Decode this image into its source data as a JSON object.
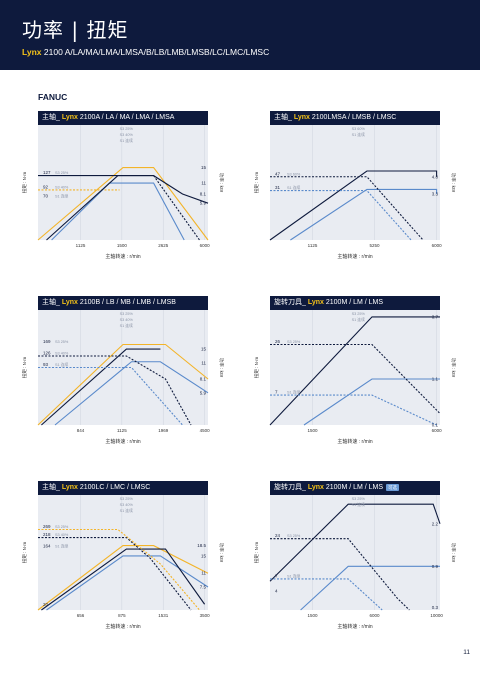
{
  "header": {
    "title": "功率 | 扭矩",
    "model_bold": "Lynx",
    "model_rest": " 2100 A/LA/MA/LMA/LMSA/B/LB/LMB/LMSB/LC/LMC/LMSC"
  },
  "section": "FANUC",
  "page_number": "11",
  "chart_data": [
    {
      "id": "c1",
      "type": "line",
      "prefix": "主轴_ ",
      "brand": "Lynx",
      "model": " 2100A / LA / MA / LMA / LMSA",
      "badge": "",
      "xlabel": "主轴转速 : r/min",
      "ylabel_left": "扭矩 : N·m",
      "ylabel_right": "功率 : kW",
      "xticks": [
        "1125",
        "1500",
        "2625",
        "6000"
      ],
      "left_values": [
        {
          "value": "127",
          "label": "S3 25%",
          "frac": 0.44
        },
        {
          "value": "92",
          "label": "S3 40%",
          "frac": 0.565
        },
        {
          "value": "70",
          "label": "S1 连续",
          "frac": 0.645
        }
      ],
      "right_values": [
        {
          "value": "15",
          "frac": 0.37
        },
        {
          "value": "11",
          "frac": 0.505
        },
        {
          "value": "8.1",
          "frac": 0.6
        },
        {
          "value": "5.9",
          "frac": 0.68
        }
      ],
      "top_labels": [
        "S3 25%",
        "S3 40%",
        "S1 连续"
      ],
      "series": [
        {
          "label": "S3 25%",
          "color": "#f3b429",
          "style": "solid",
          "points": [
            [
              0,
              1
            ],
            [
              0.5,
              0.37
            ],
            [
              0.68,
              0.37
            ],
            [
              1,
              1
            ]
          ]
        },
        {
          "label": "S3 40%",
          "color": "#f3b429",
          "style": "dashed",
          "points": [
            [
              0,
              0.565
            ],
            [
              0.48,
              0.565
            ]
          ]
        },
        {
          "label": "S1 连续",
          "color": "#5a8acb",
          "style": "solid",
          "points": [
            [
              0.08,
              1
            ],
            [
              0.42,
              0.505
            ],
            [
              0.68,
              0.505
            ],
            [
              0.86,
              1
            ]
          ]
        },
        {
          "label": "torque",
          "color": "#0e1a3d",
          "style": "solid",
          "points": [
            [
              0,
              0.44
            ],
            [
              0.48,
              0.44
            ],
            [
              0.68,
              0.44
            ],
            [
              0.68,
              0.44
            ]
          ]
        },
        {
          "label": "power",
          "color": "#0e1a3d",
          "style": "solid",
          "points": [
            [
              0.05,
              1
            ],
            [
              0.47,
              0.44
            ],
            [
              0.68,
              0.44
            ],
            [
              0.85,
              0.6
            ],
            [
              1,
              0.68
            ]
          ]
        },
        {
          "label": "S1 tail",
          "color": "#0e1a3d",
          "style": "dashed",
          "points": [
            [
              0.68,
              0.44
            ],
            [
              0.95,
              1
            ]
          ]
        }
      ]
    },
    {
      "id": "c2",
      "type": "line",
      "prefix": "主轴_ ",
      "brand": "Lynx",
      "model": " 2100LMSA / LMSB / LMSC",
      "badge": "",
      "xlabel": "主轴转速 : r/min",
      "ylabel_left": "扭矩 : N·m",
      "ylabel_right": "功率 : kW",
      "xticks": [
        "1125",
        "5250",
        "6000"
      ],
      "left_values": [
        {
          "value": "47",
          "label": "S3 60%",
          "frac": 0.45
        },
        {
          "value": "31",
          "label": "S1 连续",
          "frac": 0.57
        }
      ],
      "right_values": [
        {
          "value": "4.8",
          "frac": 0.45
        },
        {
          "value": "3.3",
          "frac": 0.6
        }
      ],
      "top_labels": [
        "S3 60%",
        "S1 连续"
      ],
      "series": [
        {
          "label": "S3 60%",
          "color": "#0e1a3d",
          "style": "solid",
          "points": [
            [
              0,
              1
            ],
            [
              0.57,
              0.4
            ],
            [
              0.98,
              0.4
            ],
            [
              0.98,
              0.45
            ]
          ]
        },
        {
          "label": "S1 连续",
          "color": "#5a8acb",
          "style": "solid",
          "points": [
            [
              0.12,
              1
            ],
            [
              0.57,
              0.56
            ],
            [
              0.98,
              0.56
            ],
            [
              0.98,
              0.6
            ]
          ]
        },
        {
          "label": "S3 60% torque",
          "color": "#0e1a3d",
          "style": "dashed",
          "points": [
            [
              0,
              0.45
            ],
            [
              0.57,
              0.45
            ],
            [
              0.9,
              1
            ]
          ]
        },
        {
          "label": "S1 torque",
          "color": "#5a8acb",
          "style": "dashed",
          "points": [
            [
              0,
              0.57
            ],
            [
              0.57,
              0.57
            ],
            [
              0.83,
              1
            ]
          ]
        }
      ]
    },
    {
      "id": "c3",
      "type": "line",
      "prefix": "主轴_ ",
      "brand": "Lynx",
      "model": " 2100B / LB / MB / LMB / LMSB",
      "badge": "",
      "xlabel": "主轴转速 : r/min",
      "ylabel_left": "扭矩 : N·m",
      "ylabel_right": "功率 : kW",
      "xticks": [
        "844",
        "1125",
        "1969",
        "4500"
      ],
      "left_values": [
        {
          "value": "169",
          "label": "S3 25%",
          "frac": 0.3
        },
        {
          "value": "126",
          "label": "S3 40%",
          "frac": 0.4
        },
        {
          "value": "93",
          "label": "S1 连续",
          "frac": 0.5
        }
      ],
      "right_values": [
        {
          "value": "15",
          "frac": 0.34
        },
        {
          "value": "11",
          "frac": 0.46
        },
        {
          "value": "8.1",
          "frac": 0.6
        },
        {
          "value": "5.9",
          "frac": 0.72
        }
      ],
      "top_labels": [
        "S3 25%",
        "S3 40%",
        "S1 连续"
      ],
      "series": [
        {
          "label": "S3 25%",
          "color": "#f3b429",
          "style": "solid",
          "points": [
            [
              0,
              1
            ],
            [
              0.5,
              0.3
            ],
            [
              0.75,
              0.3
            ],
            [
              1,
              0.6
            ]
          ]
        },
        {
          "label": "S1 连续",
          "color": "#5a8acb",
          "style": "solid",
          "points": [
            [
              0.1,
              1
            ],
            [
              0.55,
              0.45
            ],
            [
              0.72,
              0.45
            ],
            [
              1,
              0.72
            ]
          ]
        },
        {
          "label": "power",
          "color": "#0e1a3d",
          "style": "solid",
          "points": [
            [
              0.02,
              1
            ],
            [
              0.52,
              0.34
            ],
            [
              0.72,
              0.34
            ],
            [
              0.72,
              0.34
            ]
          ]
        },
        {
          "label": "S3 40%",
          "color": "#0e1a3d",
          "style": "dashed",
          "points": [
            [
              0,
              0.4
            ],
            [
              0.52,
              0.4
            ],
            [
              0.75,
              0.6
            ],
            [
              0.9,
              1
            ]
          ]
        },
        {
          "label": "S1 torque",
          "color": "#5a8acb",
          "style": "dashed",
          "points": [
            [
              0,
              0.5
            ],
            [
              0.55,
              0.5
            ],
            [
              0.85,
              1
            ]
          ]
        }
      ]
    },
    {
      "id": "c4",
      "type": "line",
      "prefix": "旋转刀具_ ",
      "brand": "Lynx",
      "model": " 2100M / LM / LMS",
      "badge": "",
      "xlabel": "主轴转速 : r/min",
      "ylabel_left": "扭矩 : N·m",
      "ylabel_right": "功率 : kW",
      "xticks": [
        "1500",
        "6000"
      ],
      "left_values": [
        {
          "value": "26",
          "label": "S3 25%",
          "frac": 0.3
        },
        {
          "value": "7",
          "label": "S1 连续",
          "frac": 0.74
        }
      ],
      "right_values": [
        {
          "value": "3.7",
          "frac": 0.06
        },
        {
          "value": "1.1",
          "frac": 0.6
        },
        {
          "value": "0.1",
          "frac": 1.0
        }
      ],
      "top_labels": [
        "S3 25%",
        "S1 连续"
      ],
      "series": [
        {
          "label": "S3 25%",
          "color": "#0e1a3d",
          "style": "solid",
          "points": [
            [
              0,
              1
            ],
            [
              0.6,
              0.06
            ],
            [
              1,
              0.06
            ]
          ]
        },
        {
          "label": "S1 连续",
          "color": "#5a8acb",
          "style": "solid",
          "points": [
            [
              0.2,
              1
            ],
            [
              0.6,
              0.6
            ],
            [
              1,
              0.6
            ]
          ]
        },
        {
          "label": "S3 torque",
          "color": "#0e1a3d",
          "style": "dashed",
          "points": [
            [
              0,
              0.3
            ],
            [
              0.6,
              0.3
            ],
            [
              1,
              0.9
            ]
          ]
        },
        {
          "label": "S1 torque",
          "color": "#5a8acb",
          "style": "dashed",
          "points": [
            [
              0,
              0.74
            ],
            [
              0.6,
              0.74
            ],
            [
              0.98,
              1
            ]
          ]
        }
      ]
    },
    {
      "id": "c5",
      "type": "line",
      "prefix": "主轴_ ",
      "brand": "Lynx",
      "model": " 2100LC / LMC / LMSC",
      "badge": "",
      "xlabel": "主轴转速 : r/min",
      "ylabel_left": "扭矩 : N·m",
      "ylabel_right": "功率 : kW",
      "xticks": [
        "656",
        "875",
        "1531",
        "3500"
      ],
      "left_values": [
        {
          "value": "269",
          "label": "S3 25%",
          "frac": 0.3
        },
        {
          "value": "218",
          "label": "S3 40%",
          "frac": 0.37
        },
        {
          "value": "164",
          "label": "S1 连续",
          "frac": 0.47
        },
        {
          "value": "20",
          "label": "",
          "frac": 0.98
        }
      ],
      "right_values": [
        {
          "value": "18.5",
          "frac": 0.44
        },
        {
          "value": "15",
          "frac": 0.53
        },
        {
          "value": "11",
          "frac": 0.68
        },
        {
          "value": "7.5",
          "frac": 0.8
        }
      ],
      "top_labels": [
        "S3 25%",
        "S3 40%",
        "S1 连续"
      ],
      "series": [
        {
          "label": "S3 25%",
          "color": "#f3b429",
          "style": "solid",
          "points": [
            [
              0,
              1
            ],
            [
              0.5,
              0.44
            ],
            [
              0.68,
              0.44
            ],
            [
              1,
              0.68
            ]
          ]
        },
        {
          "label": "S1 连续",
          "color": "#5a8acb",
          "style": "solid",
          "points": [
            [
              0.05,
              1
            ],
            [
              0.5,
              0.53
            ],
            [
              0.72,
              0.53
            ],
            [
              1,
              0.8
            ]
          ]
        },
        {
          "label": "power",
          "color": "#0e1a3d",
          "style": "solid",
          "points": [
            [
              0.02,
              1
            ],
            [
              0.52,
              0.47
            ],
            [
              0.75,
              0.47
            ],
            [
              0.98,
              0.95
            ]
          ]
        },
        {
          "label": "S3 40%",
          "color": "#0e1a3d",
          "style": "dashed",
          "points": [
            [
              0,
              0.37
            ],
            [
              0.52,
              0.37
            ],
            [
              0.66,
              0.55
            ],
            [
              0.9,
              1
            ]
          ]
        },
        {
          "label": "S3 25% torque",
          "color": "#f3b429",
          "style": "dashed",
          "points": [
            [
              0,
              0.3
            ],
            [
              0.47,
              0.3
            ],
            [
              0.72,
              0.6
            ],
            [
              0.95,
              1
            ]
          ]
        }
      ]
    },
    {
      "id": "c6",
      "type": "line",
      "prefix": "旋转刀具_ ",
      "brand": "Lynx",
      "model": " 2100M / LM / LMS",
      "badge": "可选",
      "xlabel": "主轴转速 : r/min",
      "ylabel_left": "扭矩 : N·m",
      "ylabel_right": "功率 : kW",
      "xticks": [
        "1500",
        "6000",
        "10000"
      ],
      "left_values": [
        {
          "value": "24",
          "label": "S3 25%",
          "frac": 0.38
        },
        {
          "value": "7",
          "label": "S1 连续",
          "frac": 0.73
        },
        {
          "value": "4",
          "label": "",
          "frac": 0.86
        }
      ],
      "right_values": [
        {
          "value": "2.2",
          "frac": 0.25
        },
        {
          "value": "0.9",
          "frac": 0.62
        },
        {
          "value": "0.3",
          "frac": 0.98
        }
      ],
      "top_labels": [
        "S3 25%",
        "S1 连续"
      ],
      "series": [
        {
          "label": "S3 25%",
          "color": "#0e1a3d",
          "style": "solid",
          "points": [
            [
              0,
              0.75
            ],
            [
              0.46,
              0.08
            ],
            [
              0.96,
              0.08
            ],
            [
              1,
              0.25
            ]
          ]
        },
        {
          "label": "S1 连续",
          "color": "#5a8acb",
          "style": "solid",
          "points": [
            [
              0.18,
              1
            ],
            [
              0.46,
              0.62
            ],
            [
              0.96,
              0.62
            ],
            [
              1,
              0.62
            ]
          ]
        },
        {
          "label": "S3 torque",
          "color": "#0e1a3d",
          "style": "dashed",
          "points": [
            [
              0,
              0.38
            ],
            [
              0.46,
              0.38
            ],
            [
              0.75,
              0.9
            ],
            [
              0.82,
              1
            ]
          ]
        },
        {
          "label": "S1 torque",
          "color": "#5a8acb",
          "style": "dashed",
          "points": [
            [
              0,
              0.73
            ],
            [
              0.46,
              0.73
            ],
            [
              0.66,
              1
            ]
          ]
        }
      ]
    }
  ]
}
